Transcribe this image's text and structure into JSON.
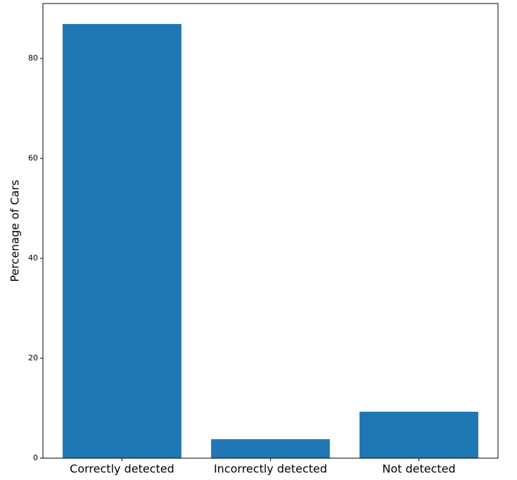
{
  "chart_data": {
    "type": "bar",
    "ylabel": "Percenage of Cars",
    "categories": [
      "Correctly detected",
      "Incorrectly detected",
      "Not detected"
    ],
    "values": [
      86.9,
      3.8,
      9.3
    ],
    "color": "#1f77b4",
    "ylim": [
      0,
      91
    ],
    "yticks": [
      0,
      20,
      40,
      60,
      80
    ]
  }
}
